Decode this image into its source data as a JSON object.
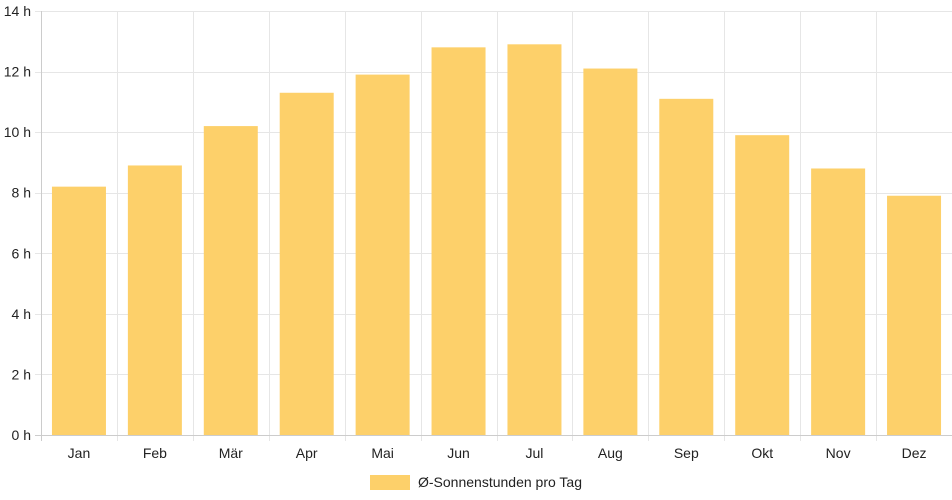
{
  "chart_data": {
    "type": "bar",
    "categories": [
      "Jan",
      "Feb",
      "Mär",
      "Apr",
      "Mai",
      "Jun",
      "Jul",
      "Aug",
      "Sep",
      "Okt",
      "Nov",
      "Dez"
    ],
    "series": [
      {
        "name": "Ø-Sonnenstunden pro Tag",
        "values": [
          8.2,
          8.9,
          10.2,
          11.3,
          11.9,
          12.8,
          12.9,
          12.1,
          11.1,
          9.9,
          8.8,
          7.9
        ],
        "color": "#fdd06a"
      }
    ],
    "y_ticks": [
      "0 h",
      "2 h",
      "4 h",
      "6 h",
      "8 h",
      "10 h",
      "12 h",
      "14 h"
    ],
    "ylim": [
      0,
      14
    ],
    "grid": true,
    "legend_position": "bottom",
    "colors": {
      "grid": "#e6e6e6",
      "axis": "#cccccc",
      "text": "#222222"
    }
  }
}
